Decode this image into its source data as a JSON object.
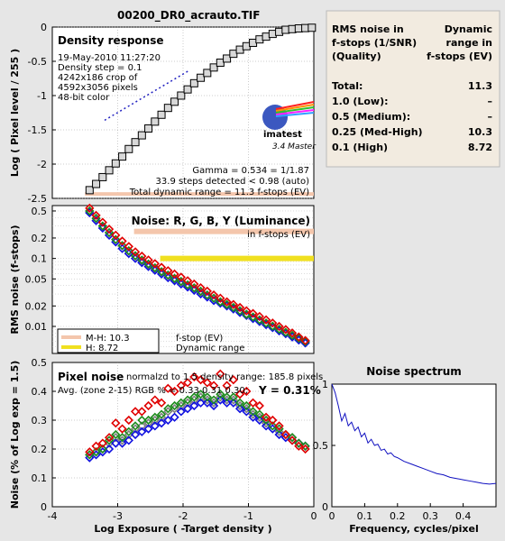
{
  "file_title": "00200_DR0_acrauto.TIF",
  "density_panel": {
    "title": "Density response",
    "date": "19-May-2010 11:27:20",
    "step": "Density step = 0.1",
    "crop": "4242x186 crop of",
    "pixels": "4592x3056 pixels",
    "bits": "48-bit color",
    "gamma": "Gamma = 0.534 = 1/1.87",
    "steps": "33.9 steps detected < 0.98 (auto)",
    "total_dr": "Total dynamic range = 11.3 f-stops (EV)",
    "ylabel": "Log ( Pixel level / 255 )",
    "logo_text": "imatest",
    "version": "3.4  Master"
  },
  "rms_panel": {
    "title": "Noise: R, G, B, Y (Luminance)",
    "subtitle": "in f-stops (EV)",
    "ylabel": "RMS noise (f-stops)",
    "legend": [
      {
        "label": "M-H: 10.3",
        "color": "#f4c6ac"
      },
      {
        "label": "H:    8.72",
        "color": "#f0e020"
      }
    ],
    "legend_right_1": "f-stop (EV)",
    "legend_right_2": "Dynamic range"
  },
  "pixel_panel": {
    "title": "Pixel noise",
    "norm": "normalzd to 1.5 density range: 185.8 pixels",
    "avg": "Avg. (zone 2-15) RGB % = 0.33  0.31  0.30;",
    "ylum": "Y = 0.31%",
    "ylabel": "Noise (% of Log exp = 1.5)",
    "xlabel": "Log Exposure ( -Target density )"
  },
  "spectrum_panel": {
    "title": "Noise spectrum",
    "xlabel": "Frequency, cycles/pixel"
  },
  "table": {
    "col1": [
      "RMS noise in",
      "f-stops (1/SNR)",
      "(Quality)"
    ],
    "col2": [
      "Dynamic",
      "range in",
      "f-stops (EV)"
    ],
    "rows": [
      {
        "label": "Total:",
        "value": "11.3"
      },
      {
        "label": "1.0   (Low):",
        "value": "–"
      },
      {
        "label": "0.5   (Medium):",
        "value": "–"
      },
      {
        "label": "0.25 (Med-High)",
        "value": "10.3"
      },
      {
        "label": "0.1   (High)",
        "value": "8.72"
      }
    ]
  },
  "colors": {
    "red": "#e00000",
    "green": "#1e8c1e",
    "blue": "#1010e0",
    "gray": "#808080",
    "dark_red": "#800000",
    "salmon": "#f4c6ac",
    "yellow": "#f0e020"
  },
  "chart_data": [
    {
      "id": "density",
      "type": "scatter",
      "x_range": [
        -4,
        0
      ],
      "y_range": [
        -2.5,
        0
      ],
      "y_ticks": [
        0,
        -0.5,
        -1,
        -1.5,
        -2,
        -2.5
      ],
      "y_tick_labels": [
        "0",
        "-0.5",
        "-1",
        "-1.5",
        "-2",
        "-2.5"
      ],
      "x": [
        -3.43,
        -3.33,
        -3.23,
        -3.13,
        -3.03,
        -2.93,
        -2.83,
        -2.73,
        -2.63,
        -2.53,
        -2.43,
        -2.33,
        -2.23,
        -2.13,
        -2.03,
        -1.93,
        -1.83,
        -1.73,
        -1.63,
        -1.53,
        -1.43,
        -1.33,
        -1.23,
        -1.13,
        -1.03,
        -0.93,
        -0.83,
        -0.73,
        -0.63,
        -0.53,
        -0.43,
        -0.33,
        -0.23,
        -0.13,
        -0.03
      ],
      "y": [
        -2.38,
        -2.29,
        -2.19,
        -2.09,
        -1.99,
        -1.89,
        -1.78,
        -1.68,
        -1.58,
        -1.48,
        -1.38,
        -1.28,
        -1.18,
        -1.09,
        -1.0,
        -0.91,
        -0.82,
        -0.74,
        -0.67,
        -0.59,
        -0.52,
        -0.46,
        -0.39,
        -0.33,
        -0.28,
        -0.23,
        -0.18,
        -0.14,
        -0.1,
        -0.07,
        -0.04,
        -0.03,
        -0.02,
        -0.015,
        -0.01
      ],
      "fit_line": {
        "x": [
          -3.2,
          -1.9
        ],
        "y": [
          -1.36,
          -0.63
        ]
      }
    },
    {
      "id": "rms_noise",
      "type": "scatter",
      "scale": "log",
      "x_range": [
        -4,
        0
      ],
      "y_range": [
        0.004,
        0.6
      ],
      "y_ticks": [
        0.5,
        0.2,
        0.1,
        0.05,
        0.02,
        0.01
      ],
      "y_tick_labels": [
        "0.5",
        "0.2",
        "0.1",
        "0.05",
        "0.02",
        "0.01"
      ],
      "bands": [
        {
          "name": "M-H",
          "y": 0.25,
          "x": [
            -2.75,
            0
          ]
        },
        {
          "name": "H",
          "y": 0.1,
          "x": [
            -2.35,
            0
          ]
        }
      ],
      "x": [
        -3.43,
        -3.33,
        -3.23,
        -3.13,
        -3.03,
        -2.93,
        -2.83,
        -2.73,
        -2.63,
        -2.53,
        -2.43,
        -2.33,
        -2.23,
        -2.13,
        -2.03,
        -1.93,
        -1.83,
        -1.73,
        -1.63,
        -1.53,
        -1.43,
        -1.33,
        -1.23,
        -1.13,
        -1.03,
        -0.93,
        -0.83,
        -0.73,
        -0.63,
        -0.53,
        -0.43,
        -0.33,
        -0.23,
        -0.13
      ],
      "series": [
        {
          "color": "red",
          "values": [
            0.55,
            0.43,
            0.34,
            0.27,
            0.22,
            0.18,
            0.15,
            0.125,
            0.108,
            0.095,
            0.084,
            0.074,
            0.066,
            0.059,
            0.053,
            0.047,
            0.042,
            0.037,
            0.033,
            0.029,
            0.026,
            0.023,
            0.021,
            0.019,
            0.017,
            0.0155,
            0.014,
            0.0125,
            0.0112,
            0.01,
            0.009,
            0.008,
            0.007,
            0.0062
          ]
        },
        {
          "color": "green",
          "values": [
            0.5,
            0.39,
            0.3,
            0.24,
            0.19,
            0.155,
            0.13,
            0.11,
            0.095,
            0.083,
            0.073,
            0.064,
            0.057,
            0.051,
            0.046,
            0.041,
            0.037,
            0.033,
            0.029,
            0.026,
            0.023,
            0.021,
            0.019,
            0.017,
            0.015,
            0.0138,
            0.0125,
            0.0112,
            0.0101,
            0.0091,
            0.0082,
            0.0074,
            0.0067,
            0.006
          ]
        },
        {
          "color": "blue",
          "values": [
            0.47,
            0.36,
            0.28,
            0.22,
            0.175,
            0.14,
            0.118,
            0.1,
            0.087,
            0.076,
            0.067,
            0.059,
            0.052,
            0.047,
            0.042,
            0.038,
            0.034,
            0.03,
            0.027,
            0.024,
            0.022,
            0.02,
            0.018,
            0.016,
            0.0145,
            0.013,
            0.0118,
            0.0106,
            0.0096,
            0.0086,
            0.0078,
            0.007,
            0.0063,
            0.0057
          ]
        },
        {
          "color": "gray",
          "values": [
            0.5,
            0.39,
            0.3,
            0.24,
            0.19,
            0.153,
            0.128,
            0.108,
            0.093,
            0.081,
            0.071,
            0.063,
            0.056,
            0.05,
            0.045,
            0.04,
            0.036,
            0.032,
            0.029,
            0.026,
            0.023,
            0.021,
            0.019,
            0.017,
            0.0152,
            0.0137,
            0.0124,
            0.0111,
            0.01,
            0.009,
            0.0081,
            0.0073,
            0.0066,
            0.0059
          ]
        }
      ]
    },
    {
      "id": "pixel_noise",
      "type": "scatter",
      "x_range": [
        -4,
        0
      ],
      "y_range": [
        0,
        0.5
      ],
      "x_ticks": [
        -4,
        -3,
        -2,
        -1,
        0
      ],
      "x_tick_labels": [
        "-4",
        "-3",
        "-2",
        "-1",
        "0"
      ],
      "y_ticks": [
        0,
        0.1,
        0.2,
        0.3,
        0.4,
        0.5
      ],
      "y_tick_labels": [
        "0",
        "0.1",
        "0.2",
        "0.3",
        "0.4",
        "0.5"
      ],
      "x": [
        -3.43,
        -3.33,
        -3.23,
        -3.13,
        -3.03,
        -2.93,
        -2.83,
        -2.73,
        -2.63,
        -2.53,
        -2.43,
        -2.33,
        -2.23,
        -2.13,
        -2.03,
        -1.93,
        -1.83,
        -1.73,
        -1.63,
        -1.53,
        -1.43,
        -1.33,
        -1.23,
        -1.13,
        -1.03,
        -0.93,
        -0.83,
        -0.73,
        -0.63,
        -0.53,
        -0.43,
        -0.33,
        -0.23,
        -0.13
      ],
      "series": [
        {
          "color": "red",
          "values": [
            0.19,
            0.21,
            0.22,
            0.24,
            0.29,
            0.27,
            0.3,
            0.33,
            0.33,
            0.35,
            0.37,
            0.36,
            0.41,
            0.4,
            0.42,
            0.43,
            0.45,
            0.44,
            0.43,
            0.42,
            0.46,
            0.42,
            0.44,
            0.39,
            0.4,
            0.36,
            0.35,
            0.31,
            0.3,
            0.28,
            0.25,
            0.23,
            0.21,
            0.2
          ]
        },
        {
          "color": "green",
          "values": [
            0.18,
            0.19,
            0.2,
            0.23,
            0.25,
            0.24,
            0.26,
            0.28,
            0.3,
            0.3,
            0.31,
            0.32,
            0.34,
            0.35,
            0.36,
            0.37,
            0.38,
            0.39,
            0.38,
            0.37,
            0.39,
            0.38,
            0.38,
            0.36,
            0.35,
            0.33,
            0.32,
            0.3,
            0.28,
            0.27,
            0.25,
            0.24,
            0.22,
            0.21
          ]
        },
        {
          "color": "blue",
          "values": [
            0.17,
            0.18,
            0.19,
            0.2,
            0.22,
            0.22,
            0.23,
            0.25,
            0.26,
            0.27,
            0.28,
            0.29,
            0.3,
            0.31,
            0.33,
            0.34,
            0.35,
            0.36,
            0.36,
            0.35,
            0.37,
            0.36,
            0.36,
            0.34,
            0.33,
            0.31,
            0.3,
            0.28,
            0.27,
            0.25,
            0.24,
            0.23,
            0.22,
            0.21
          ]
        },
        {
          "color": "gray",
          "values": [
            0.18,
            0.19,
            0.2,
            0.22,
            0.24,
            0.23,
            0.25,
            0.27,
            0.28,
            0.29,
            0.3,
            0.31,
            0.33,
            0.34,
            0.35,
            0.36,
            0.37,
            0.38,
            0.37,
            0.36,
            0.38,
            0.37,
            0.37,
            0.35,
            0.34,
            0.32,
            0.31,
            0.29,
            0.28,
            0.26,
            0.25,
            0.24,
            0.22,
            0.21
          ]
        }
      ]
    },
    {
      "id": "noise_spectrum",
      "type": "line",
      "x_range": [
        0,
        0.5
      ],
      "y_range": [
        0,
        1
      ],
      "x_ticks": [
        0,
        0.1,
        0.2,
        0.3,
        0.4
      ],
      "x_tick_labels": [
        "0",
        "0.1",
        "0.2",
        "0.3",
        "0.4"
      ],
      "y_ticks": [
        0,
        0.5,
        1
      ],
      "y_tick_labels": [
        "0",
        "0.5",
        "1"
      ],
      "x": [
        0,
        0.01,
        0.02,
        0.03,
        0.04,
        0.05,
        0.06,
        0.07,
        0.08,
        0.09,
        0.1,
        0.11,
        0.12,
        0.13,
        0.14,
        0.15,
        0.16,
        0.17,
        0.18,
        0.19,
        0.2,
        0.22,
        0.24,
        0.26,
        0.28,
        0.3,
        0.32,
        0.34,
        0.36,
        0.38,
        0.4,
        0.42,
        0.44,
        0.46,
        0.48,
        0.5
      ],
      "y": [
        1.0,
        0.93,
        0.82,
        0.7,
        0.76,
        0.66,
        0.69,
        0.62,
        0.65,
        0.57,
        0.6,
        0.52,
        0.55,
        0.5,
        0.51,
        0.46,
        0.47,
        0.43,
        0.44,
        0.41,
        0.4,
        0.37,
        0.35,
        0.33,
        0.31,
        0.29,
        0.27,
        0.26,
        0.24,
        0.23,
        0.22,
        0.21,
        0.2,
        0.19,
        0.185,
        0.19
      ]
    }
  ]
}
